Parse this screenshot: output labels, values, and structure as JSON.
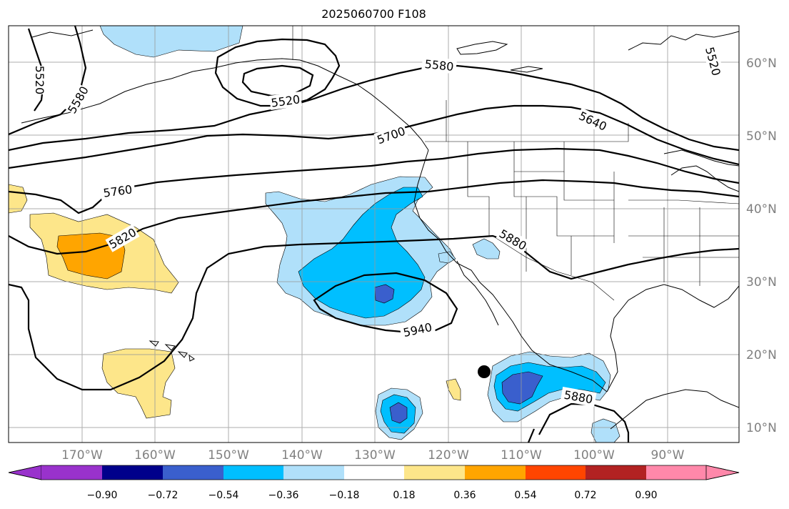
{
  "title": "2025060700 F108",
  "map": {
    "lat_labels": [
      "60°N",
      "50°N",
      "40°N",
      "30°N",
      "20°N",
      "10°N"
    ],
    "lon_labels": [
      "170°W",
      "160°W",
      "150°W",
      "140°W",
      "130°W",
      "120°W",
      "110°W",
      "100°W",
      "90°W"
    ],
    "contour_labels": [
      {
        "id": "c5520-west",
        "text": "5520"
      },
      {
        "id": "c5580-west",
        "text": "5580"
      },
      {
        "id": "c5520-low",
        "text": "5520"
      },
      {
        "id": "c5580-north",
        "text": "5580"
      },
      {
        "id": "c5700",
        "text": "5700"
      },
      {
        "id": "c5640",
        "text": "5640"
      },
      {
        "id": "c5520-east",
        "text": "5520"
      },
      {
        "id": "c5760",
        "text": "5760"
      },
      {
        "id": "c5820",
        "text": "5820"
      },
      {
        "id": "c5880-north",
        "text": "5880"
      },
      {
        "id": "c5940",
        "text": "5940"
      },
      {
        "id": "c5880-south",
        "text": "5880"
      }
    ],
    "marker": "storm-center-dot"
  },
  "colorbar": {
    "ticks": [
      "−0.90",
      "−0.72",
      "−0.54",
      "−0.36",
      "−0.18",
      "0.18",
      "0.36",
      "0.54",
      "0.72",
      "0.90"
    ],
    "colors": [
      "#9932cc",
      "#00008b",
      "#3a5fcd",
      "#00bfff",
      "#b0e0fa",
      "#ffffff",
      "#fde68a",
      "#ffa500",
      "#ff4500",
      "#b22222",
      "#ff88aa"
    ]
  },
  "colors": {
    "blue_light": "#b0e0fa",
    "blue_mid": "#00bfff",
    "blue_dark": "#3a5fcd",
    "yellow": "#fde68a",
    "orange": "#ffa500"
  }
}
